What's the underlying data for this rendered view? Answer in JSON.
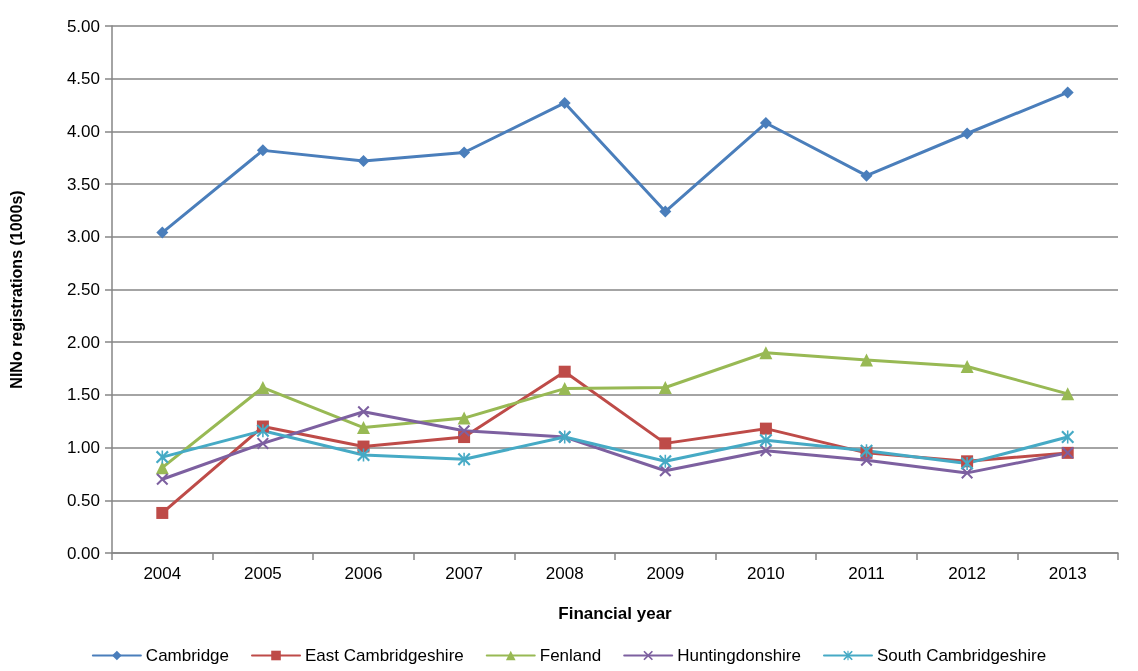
{
  "chart_data": {
    "type": "line",
    "xlabel": "Financial year",
    "ylabel": "NINo registrations (1000s)",
    "categories": [
      "2004",
      "2005",
      "2006",
      "2007",
      "2008",
      "2009",
      "2010",
      "2011",
      "2012",
      "2013"
    ],
    "series": [
      {
        "name": "Cambridge",
        "color": "#4a7ebb",
        "marker": "diamond",
        "values": [
          3.04,
          3.82,
          3.72,
          3.8,
          4.27,
          3.24,
          4.08,
          3.58,
          3.98,
          4.37
        ]
      },
      {
        "name": "East Cambridgeshire",
        "color": "#be4b48",
        "marker": "square",
        "values": [
          0.38,
          1.2,
          1.01,
          1.1,
          1.72,
          1.04,
          1.18,
          0.95,
          0.87,
          0.95
        ]
      },
      {
        "name": "Fenland",
        "color": "#98b954",
        "marker": "triangle",
        "values": [
          0.81,
          1.57,
          1.19,
          1.28,
          1.56,
          1.57,
          1.9,
          1.83,
          1.77,
          1.51
        ]
      },
      {
        "name": "Huntingdonshire",
        "color": "#7d60a0",
        "marker": "cross",
        "values": [
          0.7,
          1.04,
          1.34,
          1.16,
          1.1,
          0.78,
          0.97,
          0.88,
          0.76,
          0.95
        ]
      },
      {
        "name": "South Cambridgeshire",
        "color": "#46aac5",
        "marker": "star",
        "values": [
          0.91,
          1.16,
          0.93,
          0.89,
          1.1,
          0.87,
          1.07,
          0.97,
          0.85,
          1.1
        ]
      }
    ],
    "ylim": [
      0,
      5
    ],
    "yticks": [
      {
        "value": 0,
        "label": "0.00"
      },
      {
        "value": 0.5,
        "label": "0.50"
      },
      {
        "value": 1,
        "label": "1.00"
      },
      {
        "value": 1.5,
        "label": "1.50"
      },
      {
        "value": 2,
        "label": "2.00"
      },
      {
        "value": 2.5,
        "label": "2.50"
      },
      {
        "value": 3,
        "label": "3.00"
      },
      {
        "value": 3.5,
        "label": "3.50"
      },
      {
        "value": 4,
        "label": "4.00"
      },
      {
        "value": 4.5,
        "label": "4.50"
      },
      {
        "value": 5,
        "label": "5.00"
      }
    ],
    "grid": "y",
    "legend": "bottom"
  }
}
